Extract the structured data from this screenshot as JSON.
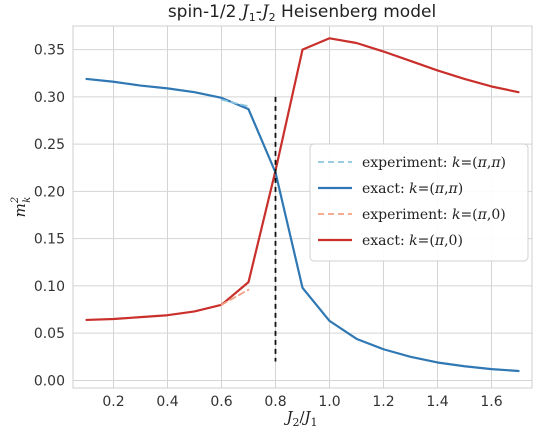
{
  "chart_data": {
    "type": "line",
    "title_parts": [
      "spin-1/2 ",
      "J",
      "1",
      "-",
      "J",
      "2",
      " Heisenberg model"
    ],
    "xlabel_parts": [
      "J",
      "2",
      "/",
      "J",
      "1"
    ],
    "ylabel_parts": [
      "m",
      "2",
      "k"
    ],
    "xlim": [
      0.05,
      1.75
    ],
    "ylim": [
      -0.008,
      0.375
    ],
    "xticks": [
      0.2,
      0.4,
      0.6,
      0.8,
      1.0,
      1.2,
      1.4,
      1.6
    ],
    "xtick_labels": [
      "0.2",
      "0.4",
      "0.6",
      "0.8",
      "1.0",
      "1.2",
      "1.4",
      "1.6"
    ],
    "yticks": [
      0.0,
      0.05,
      0.1,
      0.15,
      0.2,
      0.25,
      0.3,
      0.35
    ],
    "ytick_labels": [
      "0.00",
      "0.05",
      "0.10",
      "0.15",
      "0.20",
      "0.25",
      "0.30",
      "0.35"
    ],
    "grid": true,
    "legend_position": "center-right",
    "vline": {
      "x": 0.8,
      "y_range": [
        0.02,
        0.3
      ],
      "style": "dashed",
      "color": "#111111"
    },
    "series": [
      {
        "name": "experiment: k=(π,π)",
        "name_parts": [
          "experiment: ",
          "k",
          "=(",
          "π",
          ",",
          "π",
          ")"
        ],
        "style": "dashed",
        "color": "#8ec5e0",
        "x": [
          0.6,
          0.7
        ],
        "y": [
          0.297,
          0.29
        ]
      },
      {
        "name": "exact: k=(π,π)",
        "name_parts": [
          "exact: ",
          "k",
          "=(",
          "π",
          ",",
          "π",
          ")"
        ],
        "style": "solid",
        "color": "#2f78b4",
        "x": [
          0.1,
          0.2,
          0.3,
          0.4,
          0.5,
          0.6,
          0.7,
          0.8,
          0.9,
          1.0,
          1.1,
          1.2,
          1.3,
          1.4,
          1.5,
          1.6,
          1.7
        ],
        "y": [
          0.319,
          0.316,
          0.312,
          0.309,
          0.305,
          0.299,
          0.287,
          0.22,
          0.098,
          0.063,
          0.044,
          0.033,
          0.025,
          0.019,
          0.015,
          0.012,
          0.01
        ]
      },
      {
        "name": "experiment: k=(π,0)",
        "name_parts": [
          "experiment: ",
          "k",
          "=(",
          "π",
          ",",
          "0",
          ")"
        ],
        "style": "dashed",
        "color": "#f4a184",
        "x": [
          0.6,
          0.7
        ],
        "y": [
          0.08,
          0.096
        ]
      },
      {
        "name": "exact: k=(π,0)",
        "name_parts": [
          "exact: ",
          "k",
          "=(",
          "π",
          ",",
          "0",
          ")"
        ],
        "style": "solid",
        "color": "#c9302c",
        "x": [
          0.1,
          0.2,
          0.3,
          0.4,
          0.5,
          0.6,
          0.7,
          0.8,
          0.9,
          1.0,
          1.1,
          1.2,
          1.3,
          1.4,
          1.5,
          1.6,
          1.7
        ],
        "y": [
          0.064,
          0.065,
          0.067,
          0.069,
          0.073,
          0.08,
          0.104,
          0.222,
          0.35,
          0.362,
          0.357,
          0.348,
          0.338,
          0.328,
          0.319,
          0.311,
          0.305
        ]
      }
    ]
  }
}
